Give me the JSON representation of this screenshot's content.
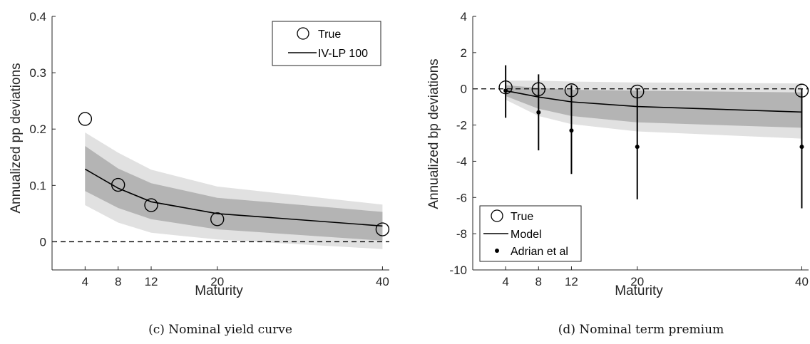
{
  "captions": {
    "left": "(c) Nominal yield curve",
    "right": "(d) Nominal term premium"
  },
  "colors": {
    "outer_band": "#e1e1e1",
    "inner_band": "#b4b4b4",
    "line": "#000000",
    "axis": "#262626"
  },
  "chart_data": [
    {
      "type": "line",
      "xlabel": "Maturity",
      "ylabel": "Annualized pp deviations",
      "xlim": [
        0,
        41
      ],
      "ylim": [
        -0.05,
        0.4
      ],
      "xticks": [
        4,
        8,
        12,
        20,
        40
      ],
      "yticks": [
        0,
        0.1,
        0.2,
        0.3,
        0.4
      ],
      "ytick_labels": [
        "0",
        "0.1",
        "0.2",
        "0.3",
        "0.4"
      ],
      "x": [
        4,
        8,
        12,
        20,
        40
      ],
      "series": [
        {
          "name": "True",
          "style": "open-circle",
          "values": [
            0.218,
            0.101,
            0.065,
            0.04,
            0.022
          ]
        },
        {
          "name": "IV-LP 100",
          "style": "line",
          "values": [
            0.129,
            0.095,
            0.071,
            0.05,
            0.028
          ]
        }
      ],
      "bands": {
        "outer_upper": [
          0.194,
          0.158,
          0.128,
          0.098,
          0.066
        ],
        "outer_lower": [
          0.065,
          0.034,
          0.016,
          0.004,
          -0.013
        ],
        "inner_upper": [
          0.17,
          0.13,
          0.104,
          0.078,
          0.053
        ],
        "inner_lower": [
          0.09,
          0.06,
          0.04,
          0.022,
          0.002
        ]
      },
      "zero_line": 0,
      "legend": {
        "position": "top-right",
        "entries": [
          "True",
          "IV-LP 100"
        ]
      }
    },
    {
      "type": "line",
      "xlabel": "Maturity",
      "ylabel": "Annualized bp deviations",
      "xlim": [
        0,
        41
      ],
      "ylim": [
        -10,
        4
      ],
      "xticks": [
        4,
        8,
        12,
        20,
        40
      ],
      "yticks": [
        -10,
        -8,
        -6,
        -4,
        -2,
        0,
        2,
        4
      ],
      "ytick_labels": [
        "-10",
        "-8",
        "-6",
        "-4",
        "-2",
        "0",
        "2",
        "4"
      ],
      "x": [
        4,
        8,
        12,
        20,
        40
      ],
      "series": [
        {
          "name": "True",
          "style": "open-circle",
          "values": [
            0.08,
            -0.02,
            -0.08,
            -0.15,
            -0.1
          ]
        },
        {
          "name": "Model",
          "style": "line",
          "values": [
            -0.1,
            -0.45,
            -0.72,
            -0.98,
            -1.28
          ]
        },
        {
          "name": "Adrian et al",
          "style": "dot-with-errorbar",
          "values": [
            -0.1,
            -1.3,
            -2.3,
            -3.2,
            -3.2
          ],
          "error_upper": [
            1.3,
            0.8,
            0.2,
            0.0,
            0.0
          ],
          "error_lower": [
            -1.6,
            -3.4,
            -4.7,
            -6.1,
            -6.6
          ]
        }
      ],
      "bands": {
        "outer_upper": [
          0.45,
          0.45,
          0.4,
          0.35,
          0.3
        ],
        "outer_lower": [
          -0.6,
          -1.5,
          -1.95,
          -2.35,
          -2.75
        ],
        "inner_upper": [
          0.2,
          0.05,
          -0.05,
          -0.1,
          -0.2
        ],
        "inner_lower": [
          -0.4,
          -1.1,
          -1.5,
          -1.85,
          -2.15
        ]
      },
      "zero_line": 0,
      "legend": {
        "position": "bottom-left",
        "entries": [
          "True",
          "Model",
          "Adrian et al"
        ]
      }
    }
  ]
}
